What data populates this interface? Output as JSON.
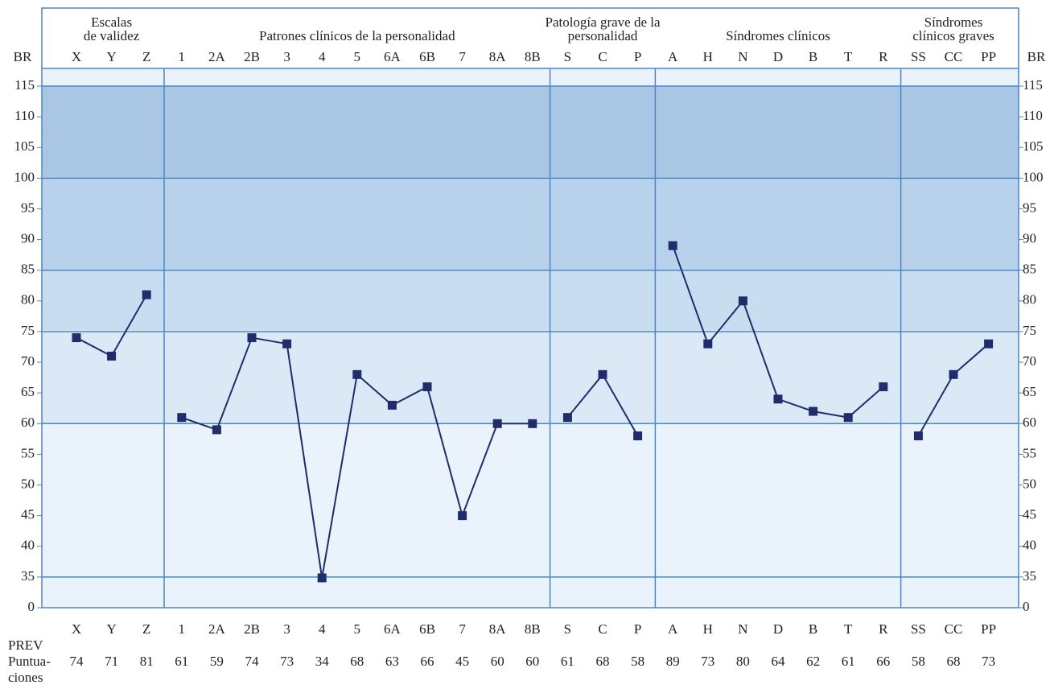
{
  "chart_data": {
    "type": "line",
    "axis_label": "BR",
    "row_labels": {
      "prev": "PREV",
      "scores": [
        "Puntua-",
        "ciones"
      ]
    },
    "color": "#1f2d6b",
    "ylim": [
      0,
      115
    ],
    "yticks": [
      0,
      35,
      40,
      45,
      50,
      55,
      60,
      65,
      70,
      75,
      80,
      85,
      90,
      95,
      100,
      105,
      110,
      115
    ],
    "hlines": [
      35,
      60,
      75,
      85,
      100,
      115
    ],
    "groups": [
      {
        "name": [
          "Escalas",
          "de validez"
        ],
        "categories": [
          "X",
          "Y",
          "Z"
        ],
        "values": [
          74,
          71,
          81
        ]
      },
      {
        "name": [
          "Patrones clínicos de la personalidad"
        ],
        "categories": [
          "1",
          "2A",
          "2B",
          "3",
          "4",
          "5",
          "6A",
          "6B",
          "7",
          "8A",
          "8B"
        ],
        "values": [
          61,
          59,
          74,
          73,
          34,
          68,
          63,
          66,
          45,
          60,
          60
        ]
      },
      {
        "name": [
          "Patología grave de la",
          "personalidad"
        ],
        "categories": [
          "S",
          "C",
          "P"
        ],
        "values": [
          61,
          68,
          58
        ]
      },
      {
        "name": [
          "Síndromes clínicos"
        ],
        "categories": [
          "A",
          "H",
          "N",
          "D",
          "B",
          "T",
          "R"
        ],
        "values": [
          89,
          73,
          80,
          64,
          62,
          61,
          66
        ]
      },
      {
        "name": [
          "Síndromes",
          "clínicos graves"
        ],
        "categories": [
          "SS",
          "CC",
          "PP"
        ],
        "values": [
          58,
          68,
          73
        ]
      }
    ]
  }
}
